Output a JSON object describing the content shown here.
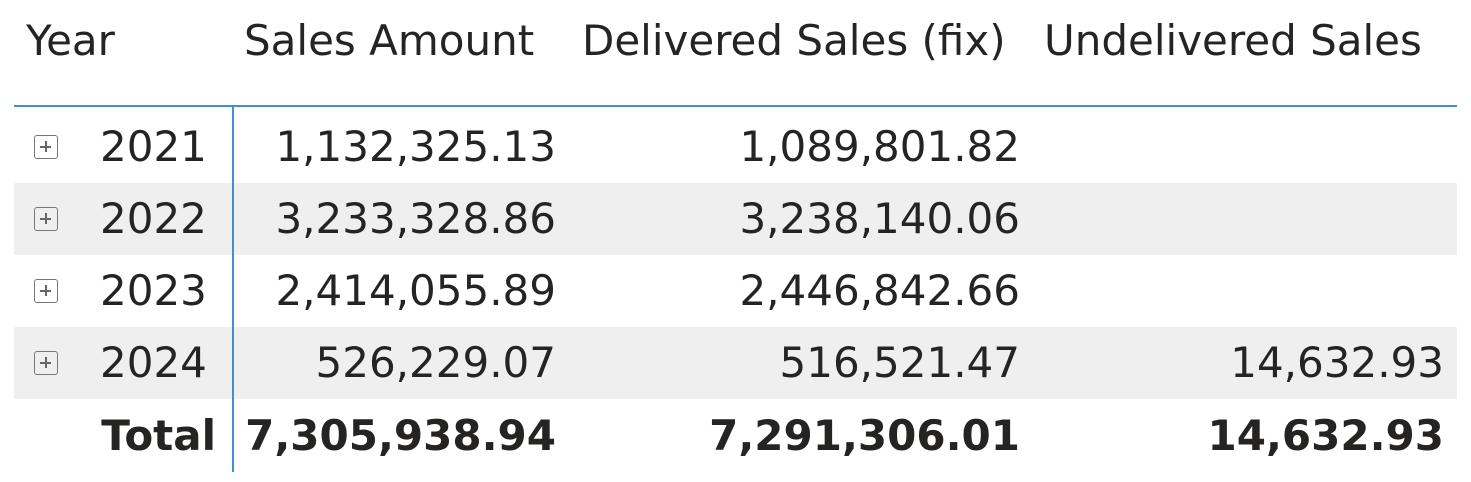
{
  "columns": [
    "Year",
    "Sales Amount",
    "Delivered Sales (fix)",
    "Undelivered Sales"
  ],
  "rows": [
    {
      "year": "2021",
      "sales": "1,132,325.13",
      "delivered": "1,089,801.82",
      "undelivered": ""
    },
    {
      "year": "2022",
      "sales": "3,233,328.86",
      "delivered": "3,238,140.06",
      "undelivered": ""
    },
    {
      "year": "2023",
      "sales": "2,414,055.89",
      "delivered": "2,446,842.66",
      "undelivered": ""
    },
    {
      "year": "2024",
      "sales": "526,229.07",
      "delivered": "516,521.47",
      "undelivered": "14,632.93"
    }
  ],
  "total": {
    "label": "Total",
    "sales": "7,305,938.94",
    "delivered": "7,291,306.01",
    "undelivered": "14,632.93"
  },
  "colors": {
    "accent": "#3d8fd6",
    "alt_row": "#efefef"
  }
}
